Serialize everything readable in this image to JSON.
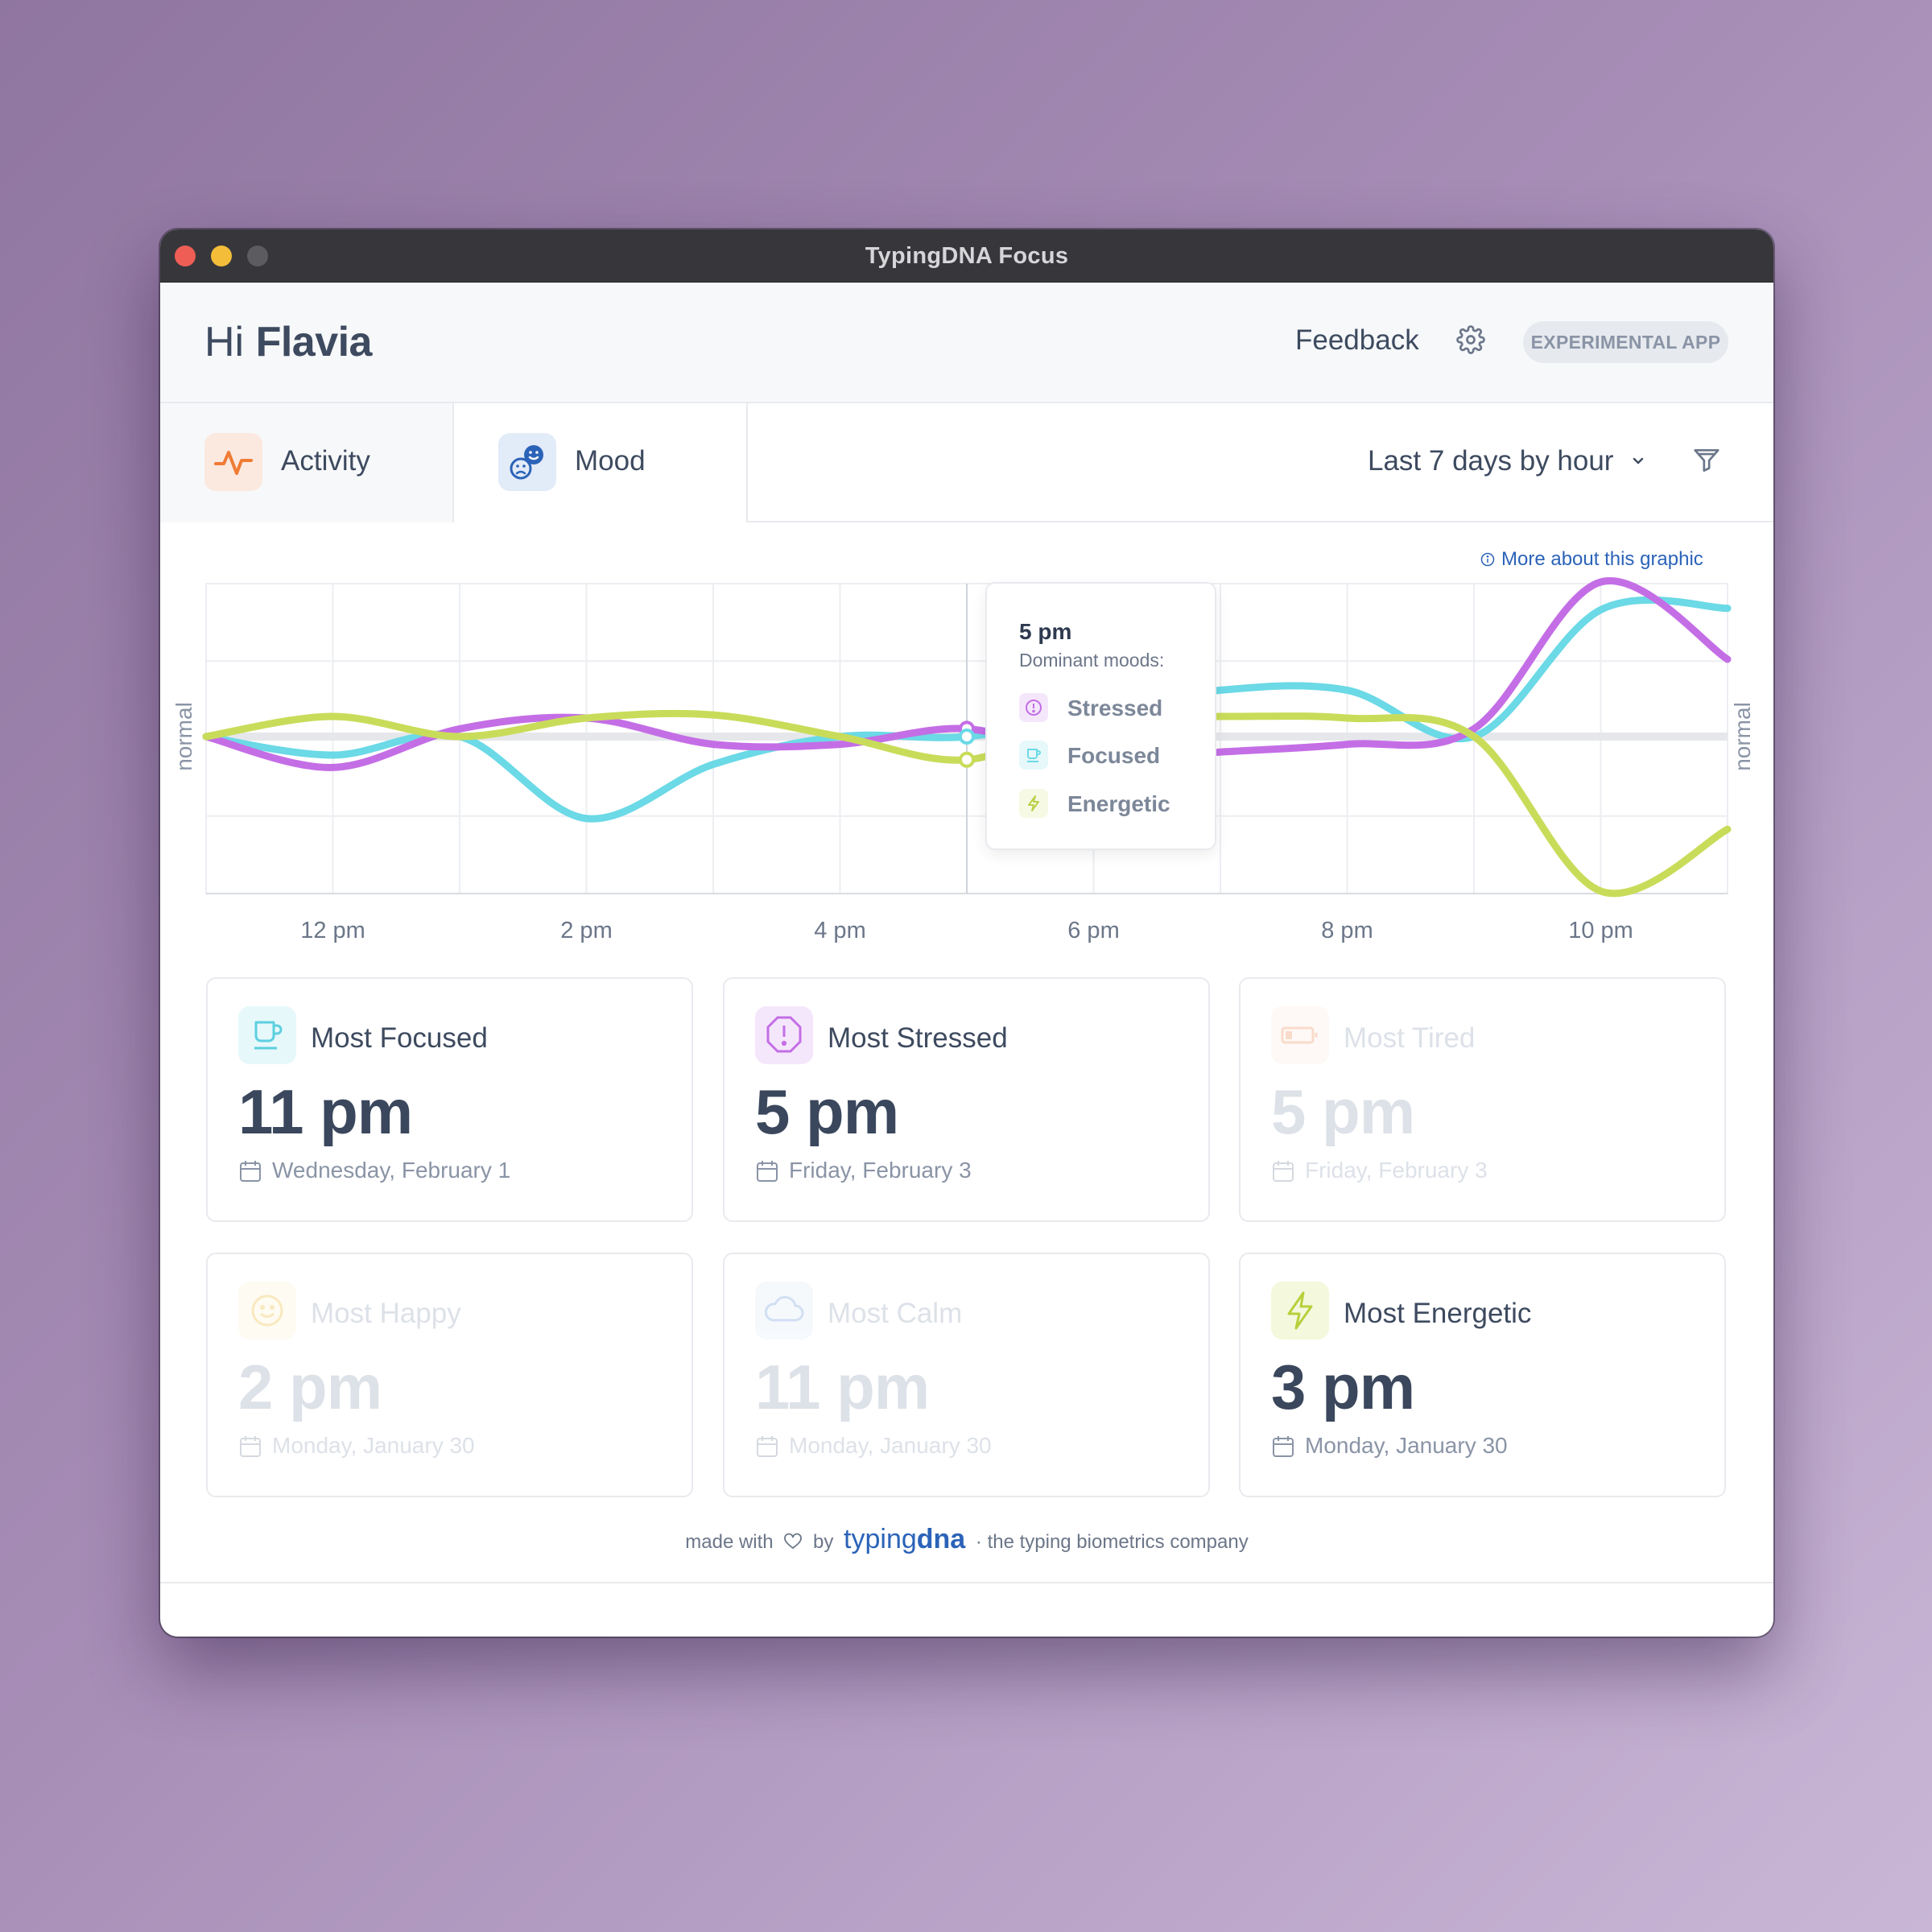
{
  "window": {
    "title": "TypingDNA Focus"
  },
  "header": {
    "greeting": "Hi",
    "user_name": "Flavia",
    "feedback_label": "Feedback",
    "badge": "EXPERIMENTAL APP"
  },
  "tabs": [
    {
      "label": "Activity",
      "icon": "activity-icon",
      "active": false
    },
    {
      "label": "Mood",
      "icon": "mood-icon",
      "active": true
    }
  ],
  "range_selector": {
    "value": "Last 7 days by hour"
  },
  "more_link": "More about this graphic",
  "colors": {
    "stressed": "#c46ee6",
    "focused": "#6bd9e6",
    "energetic": "#c9dc5a",
    "text_dark": "#3a475c",
    "accent": "#2b63b8"
  },
  "chart_data": {
    "type": "line",
    "x_ticks": [
      "12 pm",
      "2 pm",
      "4 pm",
      "6 pm",
      "8 pm",
      "10 pm"
    ],
    "y_label_left": "normal",
    "y_label_right": "normal",
    "x_hours": [
      11,
      12,
      13,
      14,
      15,
      16,
      17,
      18,
      19,
      20,
      21,
      22,
      23
    ],
    "ylim": [
      -1,
      1
    ],
    "series": [
      {
        "name": "Stressed",
        "color": "#c46ee6",
        "values": [
          0,
          -0.2,
          0.05,
          0.12,
          -0.05,
          -0.05,
          0.05,
          -0.15,
          -0.1,
          -0.05,
          0.05,
          1.0,
          0.5
        ]
      },
      {
        "name": "Focused",
        "color": "#6bd9e6",
        "values": [
          0,
          -0.12,
          0.0,
          -0.53,
          -0.18,
          0.0,
          0.0,
          0.15,
          0.3,
          0.3,
          0.0,
          0.82,
          0.83
        ]
      },
      {
        "name": "Energetic",
        "color": "#c9dc5a",
        "values": [
          0,
          0.13,
          0.0,
          0.12,
          0.14,
          0.0,
          -0.15,
          0.13,
          0.13,
          0.12,
          0.0,
          -1.0,
          -0.6
        ]
      }
    ],
    "grid": true,
    "hover": {
      "time": "5 pm"
    }
  },
  "tooltip": {
    "time": "5 pm",
    "subtitle": "Dominant moods:",
    "items": [
      {
        "label": "Stressed",
        "icon": "alert-icon"
      },
      {
        "label": "Focused",
        "icon": "cup-icon"
      },
      {
        "label": "Energetic",
        "icon": "lightning-icon"
      }
    ]
  },
  "cards": [
    {
      "title": "Most Focused",
      "time": "11 pm",
      "date": "Wednesday, February 1",
      "icon": "cup-icon",
      "dim": false
    },
    {
      "title": "Most Stressed",
      "time": "5 pm",
      "date": "Friday, February 3",
      "icon": "alert-icon",
      "dim": false
    },
    {
      "title": "Most Tired",
      "time": "5 pm",
      "date": "Friday, February 3",
      "icon": "battery-icon",
      "dim": true
    },
    {
      "title": "Most Happy",
      "time": "2 pm",
      "date": "Monday, January 30",
      "icon": "smile-icon",
      "dim": true
    },
    {
      "title": "Most Calm",
      "time": "11 pm",
      "date": "Monday, January 30",
      "icon": "cloud-icon",
      "dim": true
    },
    {
      "title": "Most Energetic",
      "time": "3 pm",
      "date": "Monday, January 30",
      "icon": "lightning-icon",
      "dim": false
    }
  ],
  "footer": {
    "made_with": "made with",
    "by": "by",
    "brand_light": "typing",
    "brand_bold": "dna",
    "separator": "·",
    "tagline": "the typing biometrics company"
  }
}
